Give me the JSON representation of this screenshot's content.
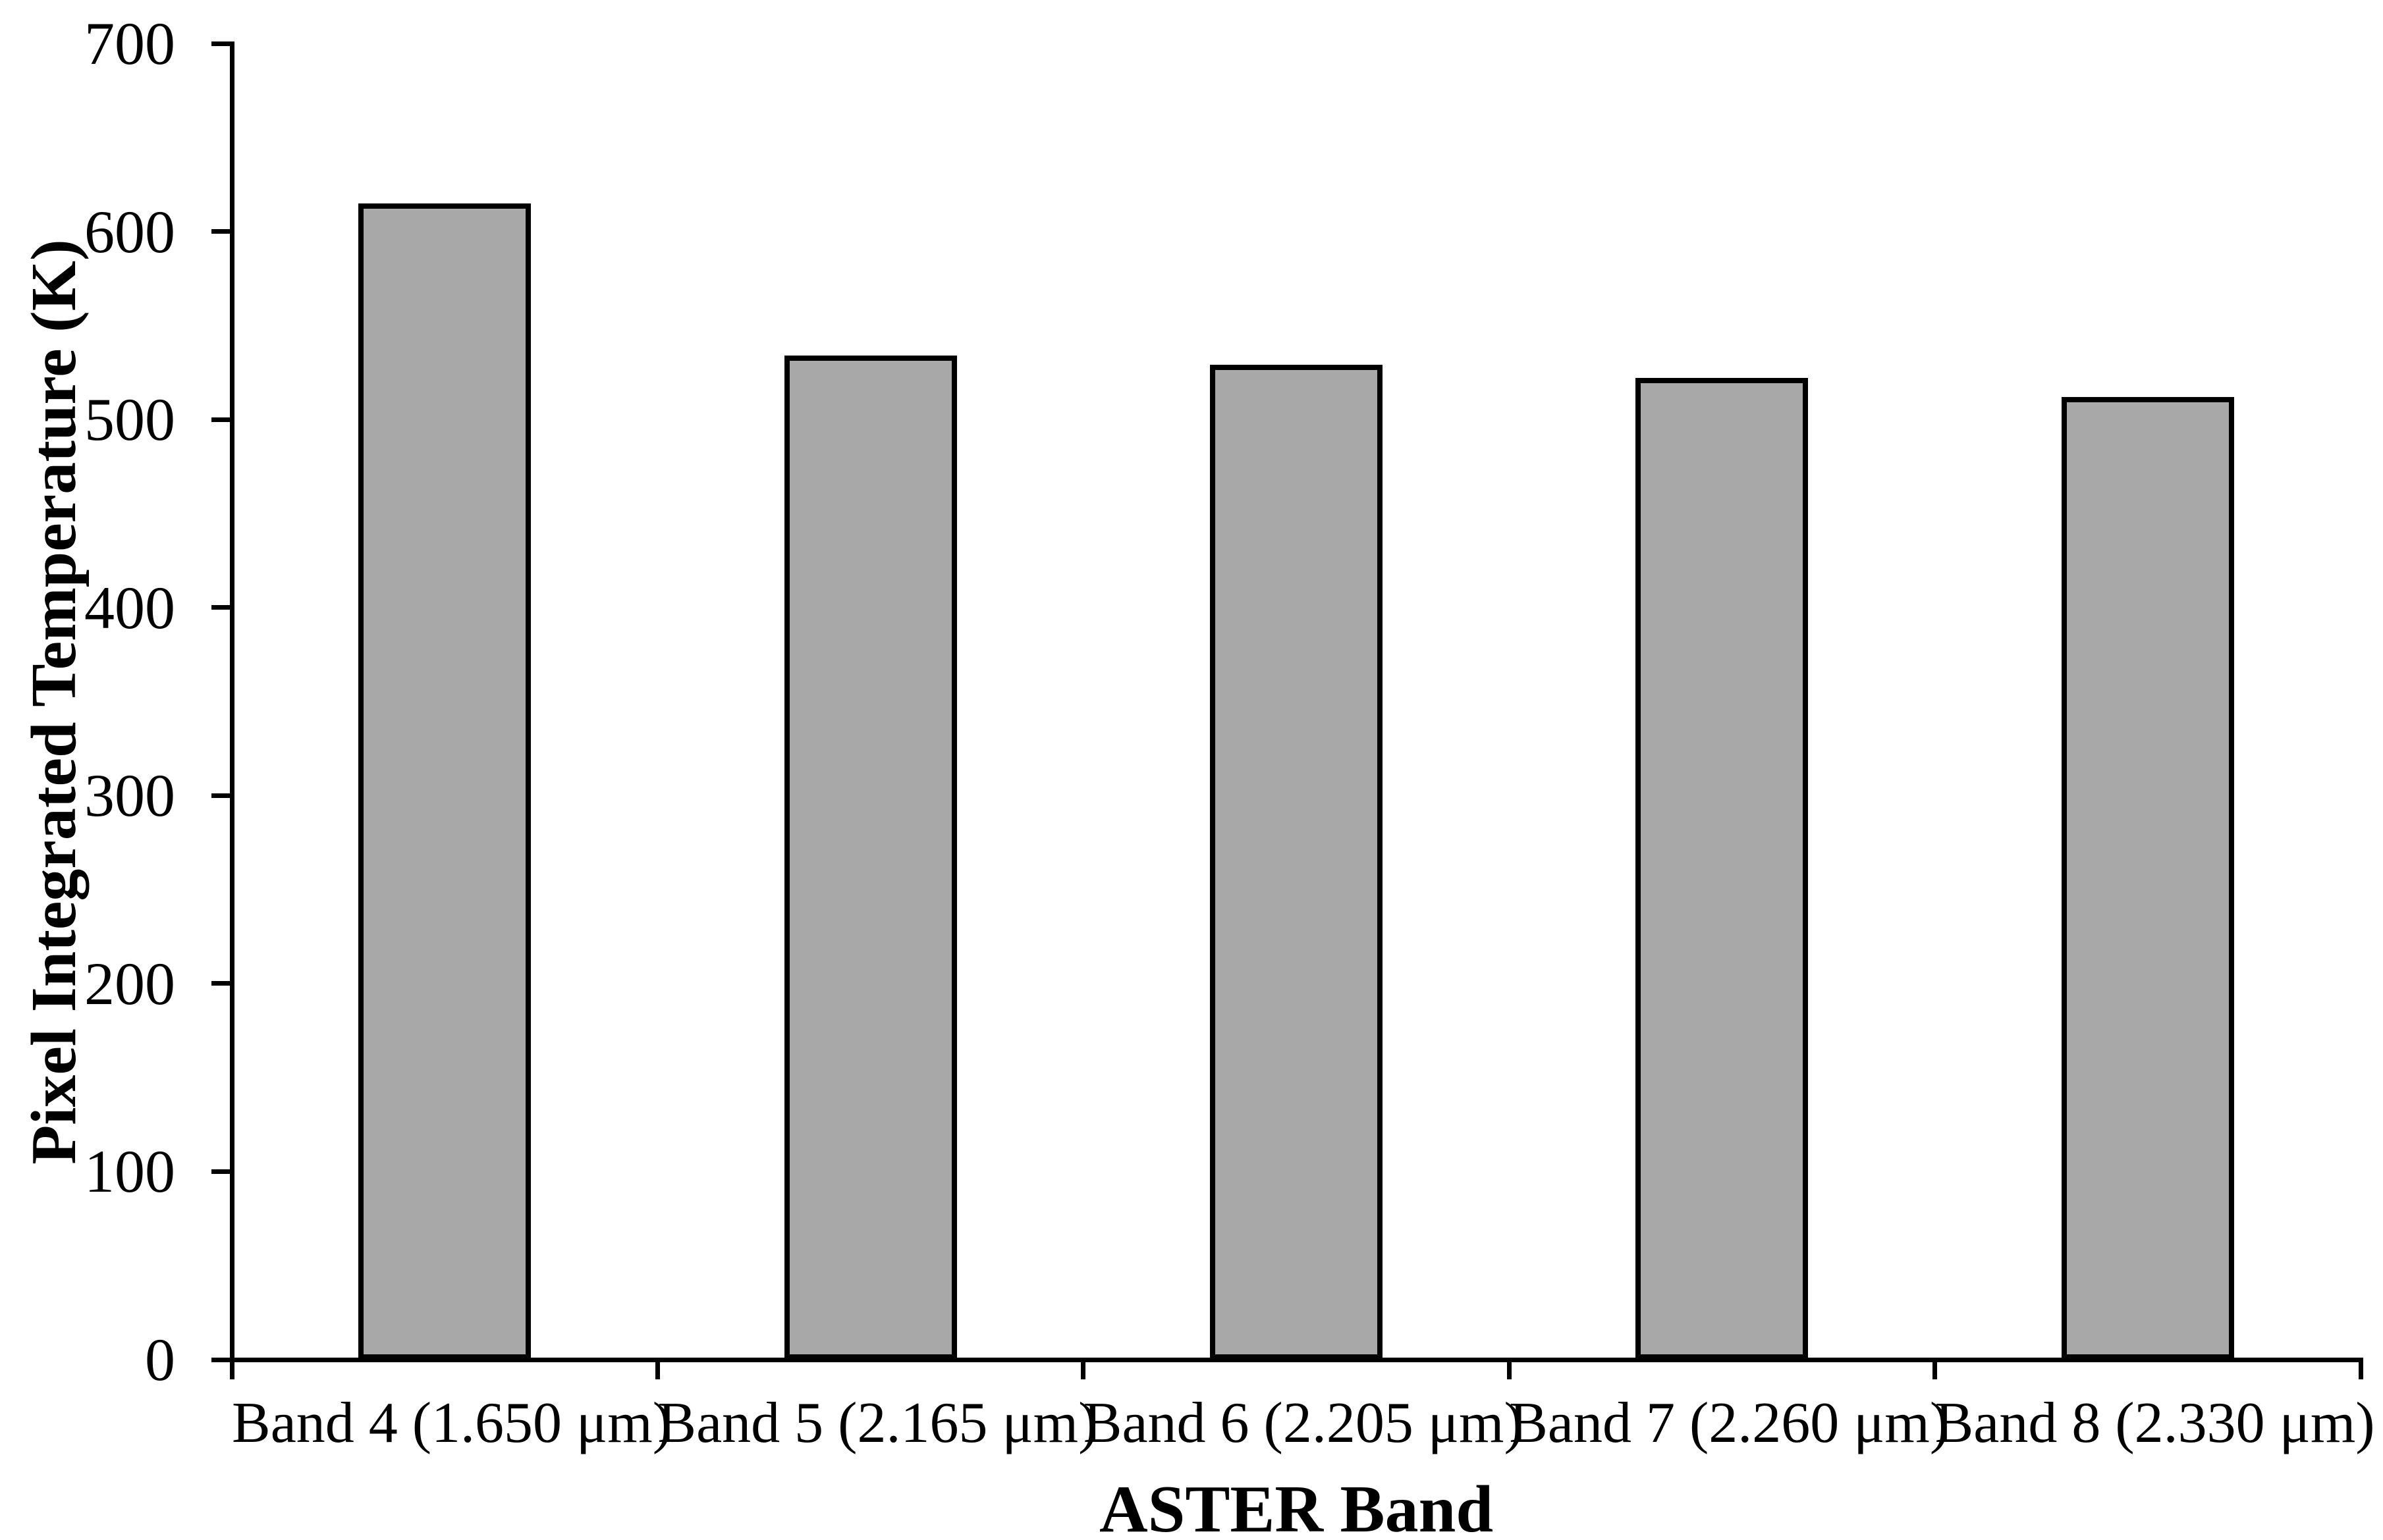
{
  "chart_data": {
    "type": "bar",
    "title": "",
    "categories": [
      "Band 4 (1.650 μm)",
      "Band 5 (2.165 μm)",
      "Band 6 (2.205 μm)",
      "Band 7 (2.260 μm)",
      "Band 8 (2.330 μm)"
    ],
    "values": [
      615,
      534,
      529,
      522,
      512
    ],
    "xlabel": "ASTER Band",
    "ylabel": "Pixel Integrated Temperature (K)",
    "ylim": [
      0,
      700
    ],
    "yticks": [
      0,
      100,
      200,
      300,
      400,
      500,
      600,
      700
    ],
    "grid": false,
    "legend_position": "none",
    "colors": {
      "bar_fill": "#a8a8a8",
      "bar_border": "#000000",
      "axis": "#000000",
      "text": "#000000",
      "background": "#ffffff"
    }
  }
}
